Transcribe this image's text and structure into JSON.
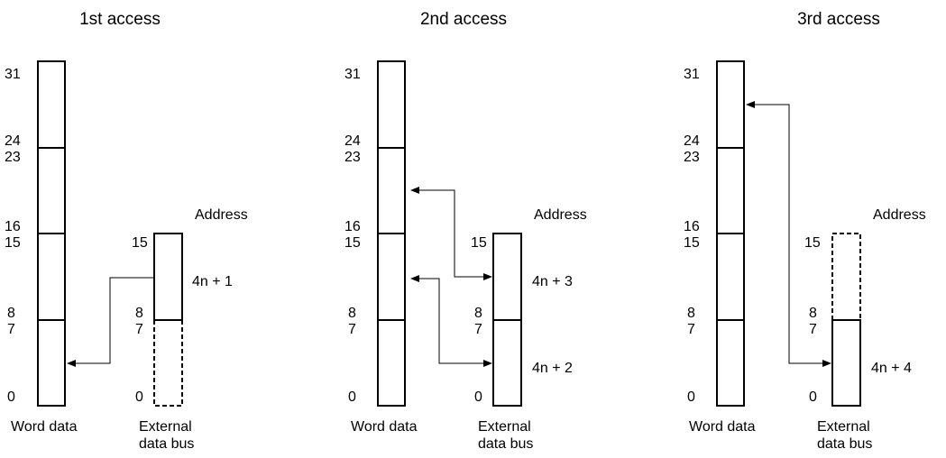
{
  "panels": [
    {
      "title": "1st access",
      "word_bits": [
        "31",
        "24",
        "23",
        "16",
        "15",
        "8",
        "7",
        "0"
      ],
      "bus_bits": [
        "15",
        "8",
        "7",
        "0"
      ],
      "address_label": "Address",
      "upper_address": "4n + 1",
      "lower_address": "",
      "word_caption": "Word data",
      "bus_caption_1": "External",
      "bus_caption_2": "data bus"
    },
    {
      "title": "2nd access",
      "word_bits": [
        "31",
        "24",
        "23",
        "16",
        "15",
        "8",
        "7",
        "0"
      ],
      "bus_bits": [
        "15",
        "8",
        "7",
        "0"
      ],
      "address_label": "Address",
      "upper_address": "4n + 3",
      "lower_address": "4n + 2",
      "word_caption": "Word data",
      "bus_caption_1": "External",
      "bus_caption_2": "data bus"
    },
    {
      "title": "3rd access",
      "word_bits": [
        "31",
        "24",
        "23",
        "16",
        "15",
        "8",
        "7",
        "0"
      ],
      "bus_bits": [
        "15",
        "8",
        "7",
        "0"
      ],
      "address_label": "Address",
      "upper_address": "",
      "lower_address": "4n + 4",
      "word_caption": "Word data",
      "bus_caption_1": "External",
      "bus_caption_2": "data bus"
    }
  ]
}
